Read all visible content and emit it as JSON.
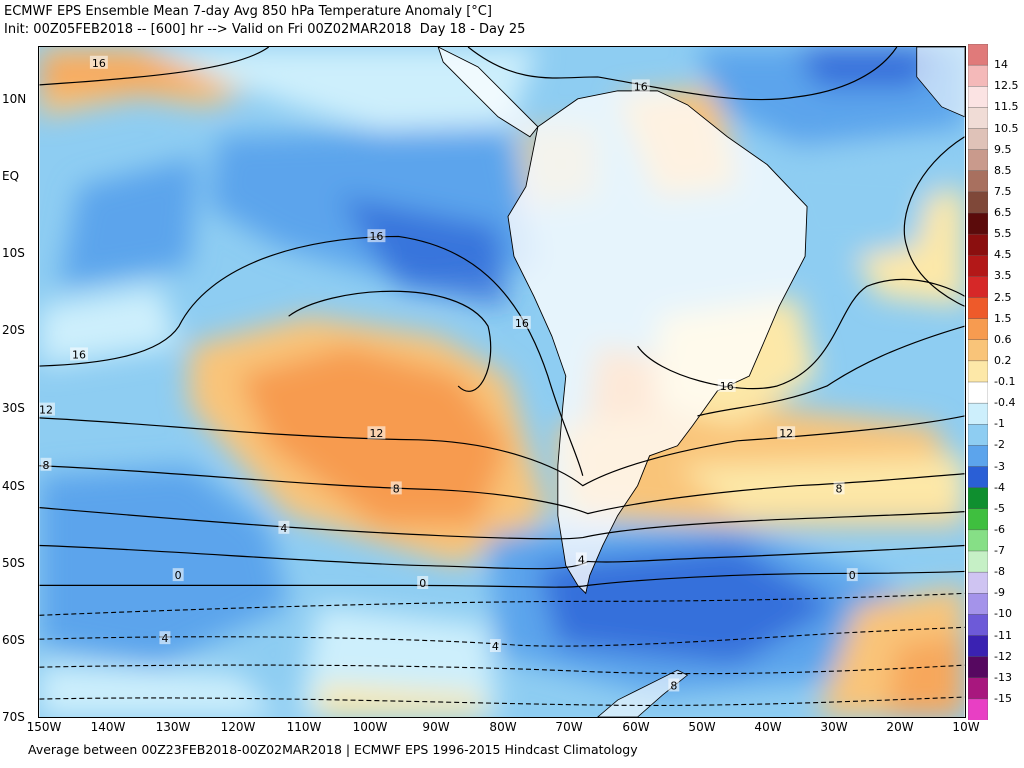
{
  "header": {
    "line1": "ECMWF EPS Ensemble Mean 7-day Avg 850 hPa Temperature Anomaly [°C]",
    "line2": "Init: 00Z05FEB2018 -- [600] hr --> Valid on Fri 00Z02MAR2018  Day 18 - Day 25"
  },
  "footer": "Average between 00Z23FEB2018-00Z02MAR2018 | ECMWF EPS 1996-2015 Hindcast Climatology",
  "map": {
    "lat_labels": [
      "10N",
      "EQ",
      "10S",
      "20S",
      "30S",
      "40S",
      "50S",
      "60S",
      "70S"
    ],
    "lon_labels": [
      "150W",
      "140W",
      "130W",
      "120W",
      "110W",
      "100W",
      "90W",
      "80W",
      "70W",
      "60W",
      "50W",
      "40W",
      "30W",
      "20W",
      "10W"
    ],
    "contour_labels": [
      {
        "text": "16",
        "lon": -141,
        "lat": 13
      },
      {
        "text": "16",
        "lon": -59,
        "lat": 10
      },
      {
        "text": "16",
        "lon": -99,
        "lat": -9
      },
      {
        "text": "16",
        "lon": -77,
        "lat": -20
      },
      {
        "text": "16",
        "lon": -144,
        "lat": -24
      },
      {
        "text": "16",
        "lon": -46,
        "lat": -28
      },
      {
        "text": "12",
        "lon": -149,
        "lat": -31
      },
      {
        "text": "12",
        "lon": -99,
        "lat": -34
      },
      {
        "text": "12",
        "lon": -37,
        "lat": -34
      },
      {
        "text": "8",
        "lon": -149,
        "lat": -38
      },
      {
        "text": "8",
        "lon": -96,
        "lat": -41
      },
      {
        "text": "8",
        "lon": -29,
        "lat": -41
      },
      {
        "text": "4",
        "lon": -113,
        "lat": -46
      },
      {
        "text": "4",
        "lon": -68,
        "lat": -50
      },
      {
        "text": "0",
        "lon": -129,
        "lat": -52
      },
      {
        "text": "0",
        "lon": -92,
        "lat": -53
      },
      {
        "text": "0",
        "lon": -27,
        "lat": -52
      },
      {
        "text": "4",
        "lon": -131,
        "lat": -60
      },
      {
        "text": "4",
        "lon": -81,
        "lat": -61
      },
      {
        "text": "8",
        "lon": -54,
        "lat": -66
      }
    ]
  },
  "colorbar": {
    "labels": [
      "14",
      "12.5",
      "11.5",
      "10.5",
      "9.5",
      "8.5",
      "7.5",
      "6.5",
      "5.5",
      "4.5",
      "3.5",
      "2.5",
      "1.5",
      "0.6",
      "0.2",
      "-0.1",
      "-0.4",
      "-1",
      "-2",
      "-3",
      "-4",
      "-5",
      "-6",
      "-7",
      "-8",
      "-9",
      "-10",
      "-11",
      "-12",
      "-13",
      "-15"
    ],
    "colors": [
      "#e07a7a",
      "#f4b9b9",
      "#fbe3e3",
      "#f0dcd6",
      "#dfc2b8",
      "#c99a8c",
      "#a8705f",
      "#7f4839",
      "#5b0b0b",
      "#8b0f0f",
      "#b31818",
      "#d62828",
      "#ee5a2a",
      "#f79b50",
      "#f9c479",
      "#fde8a8",
      "#ffffff",
      "#cdeffc",
      "#8ecdf2",
      "#5ca4ec",
      "#2a5fd6",
      "#0f8f2f",
      "#3fbf3f",
      "#86df86",
      "#c6f0c6",
      "#cfc4f2",
      "#a493ea",
      "#6d5ad8",
      "#3a22b2",
      "#560860",
      "#a8177e",
      "#e83fc4"
    ]
  }
}
